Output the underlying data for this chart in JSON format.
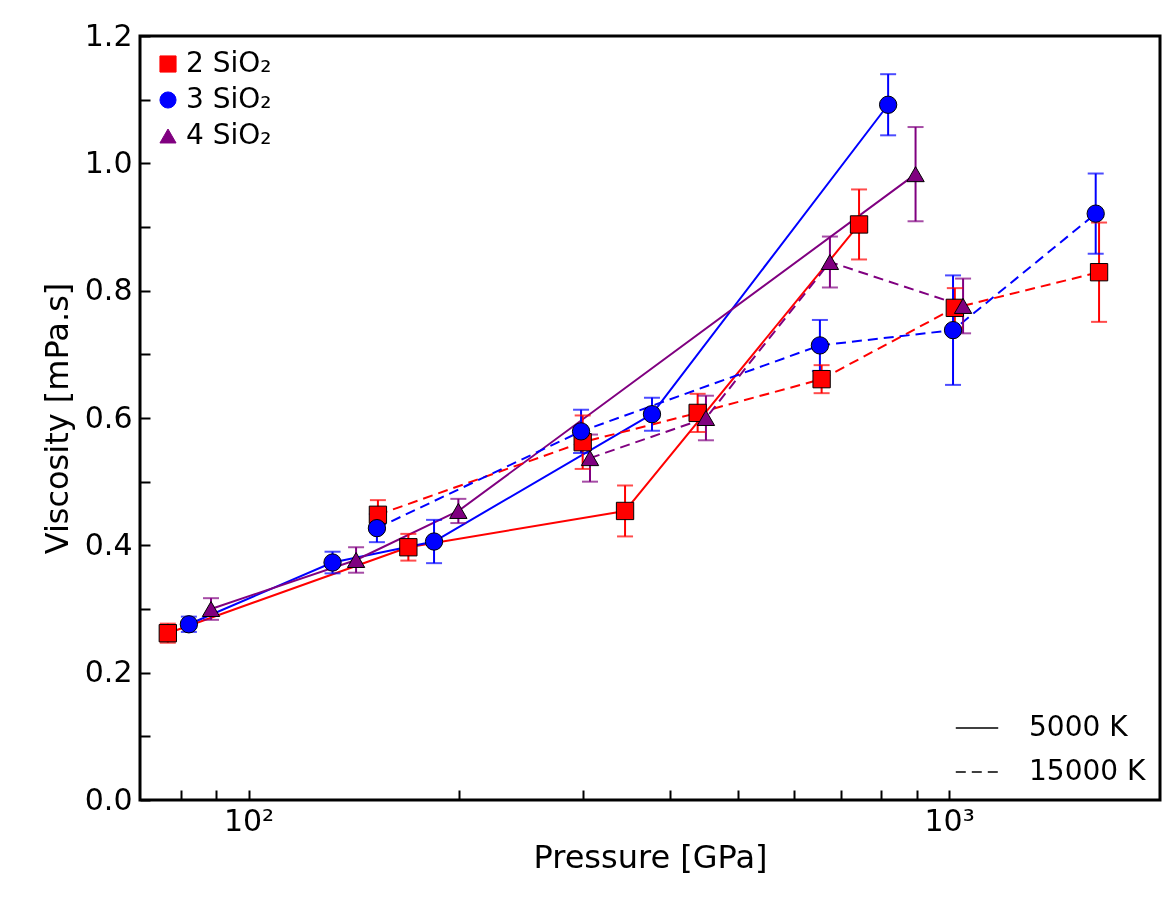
{
  "chart_data": {
    "type": "line",
    "xlabel": "Pressure [GPa]",
    "ylabel": "Viscosity [mPa.s]",
    "log": "x",
    "xlim": [
      70,
      2000
    ],
    "ylim": [
      0,
      1.2
    ],
    "xticks": [
      {
        "value": 80,
        "label": null
      },
      {
        "value": 90,
        "label": null
      },
      {
        "value": 100,
        "label": "10²"
      },
      {
        "value": 200,
        "label": null
      },
      {
        "value": 300,
        "label": null
      },
      {
        "value": 400,
        "label": null
      },
      {
        "value": 500,
        "label": null
      },
      {
        "value": 600,
        "label": null
      },
      {
        "value": 700,
        "label": null
      },
      {
        "value": 800,
        "label": null
      },
      {
        "value": 900,
        "label": null
      },
      {
        "value": 1000,
        "label": "10³"
      }
    ],
    "yticks": [
      {
        "value": 0,
        "label": "0.0"
      },
      {
        "value": 0.1,
        "label": null
      },
      {
        "value": 0.2,
        "label": "0.2"
      },
      {
        "value": 0.3,
        "label": null
      },
      {
        "value": 0.4,
        "label": "0.4"
      },
      {
        "value": 0.5,
        "label": null
      },
      {
        "value": 0.6,
        "label": "0.6"
      },
      {
        "value": 0.7,
        "label": null
      },
      {
        "value": 0.8,
        "label": "0.8"
      },
      {
        "value": 0.9,
        "label": null
      },
      {
        "value": 1.0,
        "label": "1.0"
      },
      {
        "value": 1.1,
        "label": null
      },
      {
        "value": 1.2,
        "label": "1.2"
      }
    ],
    "grid": false,
    "legend": "top left",
    "annotations": [
      "5000 K",
      "15000 K"
    ],
    "series": [
      {
        "name": "2 SiO₂",
        "color": "#ff0000",
        "marker": "square",
        "line_style": "solid",
        "x": [
          76.7,
          169.1,
          344.7,
          743.8
        ],
        "values": [
          0.262,
          0.397,
          0.454,
          0.904
        ],
        "errors": [
          0.015,
          0.021,
          0.04,
          0.055
        ]
      },
      {
        "name": "3 SiO₂",
        "color": "#0000ff",
        "marker": "circle",
        "line_style": "solid",
        "x": [
          82.2,
          131.8,
          184.0,
          376.6,
          818.4
        ],
        "values": [
          0.276,
          0.373,
          0.406,
          0.606,
          1.092
        ],
        "errors": [
          0.012,
          0.017,
          0.034,
          0.026,
          0.048
        ]
      },
      {
        "name": "4 SiO₂",
        "color": "#800080",
        "marker": "triangle",
        "line_style": "solid",
        "x": [
          88.4,
          142.4,
          199.3,
          895.6
        ],
        "values": [
          0.3,
          0.377,
          0.454,
          0.983
        ],
        "errors": [
          0.017,
          0.02,
          0.019,
          0.074
        ]
      },
      {
        "color": "#ff0000",
        "marker": "square",
        "line_style": "dashed",
        "x": [
          153.0,
          299.9,
          437.6,
          657.7,
          1019,
          1637
        ],
        "values": [
          0.448,
          0.562,
          0.608,
          0.661,
          0.773,
          0.829
        ],
        "errors": [
          0.023,
          0.042,
          0.03,
          0.022,
          0.031,
          0.078
        ]
      },
      {
        "color": "#0000ff",
        "marker": "circle",
        "line_style": "dashed",
        "x": [
          152.5,
          298.3,
          654.0,
          1013,
          1619
        ],
        "values": [
          0.427,
          0.579,
          0.714,
          0.738,
          0.921
        ],
        "errors": [
          0.022,
          0.034,
          0.04,
          0.086,
          0.063
        ]
      },
      {
        "color": "#800080",
        "marker": "triangle",
        "line_style": "dashed",
        "x": [
          307.2,
          449.7,
          675.9,
          1047
        ],
        "values": [
          0.537,
          0.6,
          0.845,
          0.776
        ],
        "errors": [
          0.037,
          0.035,
          0.04,
          0.043
        ]
      }
    ]
  }
}
